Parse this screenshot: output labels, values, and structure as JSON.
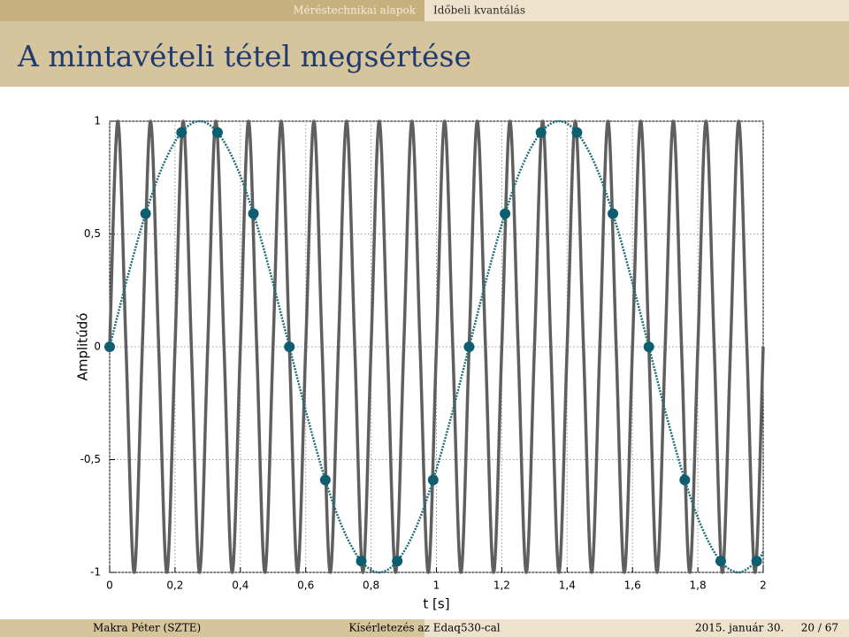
{
  "header": {
    "section": "Méréstechnikai alapok",
    "subsection": "Időbeli kvantálás",
    "title": "A mintavételi tétel megsértése"
  },
  "footer": {
    "author": "Makra Péter (SZTE)",
    "talk": "Kísérletezés az Edaq530-cal",
    "date": "2015. január 30.",
    "page": "20 / 67"
  },
  "chart_data": {
    "type": "line",
    "x_label": "t [s]",
    "y_label": "Amplitúdó",
    "xlim": [
      0,
      2
    ],
    "ylim": [
      -1,
      1
    ],
    "xticks": [
      0,
      {
        "value": 0.2,
        "label": "0,2"
      },
      {
        "value": 0.4,
        "label": "0,4"
      },
      {
        "value": 0.6,
        "label": "0,6"
      },
      {
        "value": 0.8,
        "label": "0,8"
      },
      1,
      {
        "value": 1.2,
        "label": "1,2"
      },
      {
        "value": 1.4,
        "label": "1,4"
      },
      {
        "value": 1.6,
        "label": "1,6"
      },
      {
        "value": 1.8,
        "label": "1,8"
      },
      2
    ],
    "yticks": [
      -1,
      {
        "value": -0.5,
        "label": "-0,5"
      },
      0,
      {
        "value": 0.5,
        "label": "0,5"
      },
      1
    ],
    "grid": true,
    "series": [
      {
        "color": "#5f5f5f",
        "style": "solid",
        "x": [
          0,
          0.025,
          0.05,
          0.075,
          0.1,
          0.125,
          0.15,
          0.175,
          0.2,
          0.225,
          0.25,
          0.275,
          0.3,
          0.325,
          0.35,
          0.375,
          0.4,
          0.425,
          0.45,
          0.475,
          0.5,
          0.525,
          0.55,
          0.575,
          0.6,
          0.625,
          0.65,
          0.675,
          0.7,
          0.725,
          0.75,
          0.775,
          0.8,
          0.825,
          0.85,
          0.875,
          0.9,
          0.925,
          0.95,
          0.975,
          1,
          1.025,
          1.05,
          1.075,
          1.1,
          1.125,
          1.15,
          1.175,
          1.2,
          1.225,
          1.25,
          1.275,
          1.3,
          1.325,
          1.35,
          1.375,
          1.4,
          1.425,
          1.45,
          1.475,
          1.5,
          1.525,
          1.55,
          1.575,
          1.6,
          1.625,
          1.65,
          1.675,
          1.7,
          1.725,
          1.75,
          1.775,
          1.8,
          1.825,
          1.85,
          1.875,
          1.9,
          1.925,
          1.95,
          1.975,
          2
        ],
        "values": [
          0,
          1,
          0,
          -1,
          0,
          1,
          0,
          -1,
          0,
          1,
          0,
          -1,
          0,
          1,
          0,
          -1,
          0,
          1,
          0,
          -1,
          0,
          1,
          0,
          -1,
          0,
          1,
          0,
          -1,
          0,
          1,
          0,
          -1,
          0,
          1,
          0,
          -1,
          0,
          1,
          0,
          -1,
          0,
          1,
          0,
          -1,
          0,
          1,
          0,
          -1,
          0,
          1,
          0,
          -1,
          0,
          1,
          0,
          -1,
          0,
          1,
          0,
          -1,
          0,
          1,
          0,
          -1,
          0,
          1,
          0,
          -1,
          0,
          1,
          0,
          -1,
          0,
          1,
          0,
          -1,
          0,
          1,
          0,
          -1,
          0
        ]
      },
      {
        "color": "#1d6c7c",
        "style": "dotted",
        "x": [
          0,
          0.055,
          0.11,
          0.165,
          0.22,
          0.275,
          0.33,
          0.385,
          0.44,
          0.495,
          0.55,
          0.605,
          0.66,
          0.715,
          0.77,
          0.825,
          0.88,
          0.935,
          0.99,
          1.045,
          1.1,
          1.155,
          1.21,
          1.265,
          1.32,
          1.375,
          1.43,
          1.485,
          1.54,
          1.595,
          1.65,
          1.705,
          1.76,
          1.815,
          1.87,
          1.925,
          1.98,
          2
        ],
        "values": [
          0,
          0.31,
          0.59,
          0.81,
          0.95,
          1,
          0.95,
          0.81,
          0.59,
          0.31,
          0,
          -0.31,
          -0.59,
          -0.81,
          -0.95,
          -1,
          -0.95,
          -0.81,
          -0.59,
          -0.31,
          0,
          0.31,
          0.59,
          0.81,
          0.95,
          1,
          0.95,
          0.81,
          0.59,
          0.31,
          0,
          -0.31,
          -0.59,
          -0.81,
          -0.95,
          -1,
          -0.95,
          -0.91
        ]
      },
      {
        "color": "#0e5e72",
        "style": "markers",
        "x": [
          0,
          0.11,
          0.22,
          0.33,
          0.44,
          0.55,
          0.66,
          0.77,
          0.88,
          0.99,
          1.1,
          1.21,
          1.32,
          1.43,
          1.54,
          1.65,
          1.76,
          1.87,
          1.98
        ],
        "values": [
          0,
          0.59,
          0.95,
          0.95,
          0.59,
          0,
          -0.59,
          -0.95,
          -0.95,
          -0.59,
          0,
          0.59,
          0.95,
          0.95,
          0.59,
          0,
          -0.59,
          -0.95,
          -0.95
        ]
      }
    ]
  }
}
